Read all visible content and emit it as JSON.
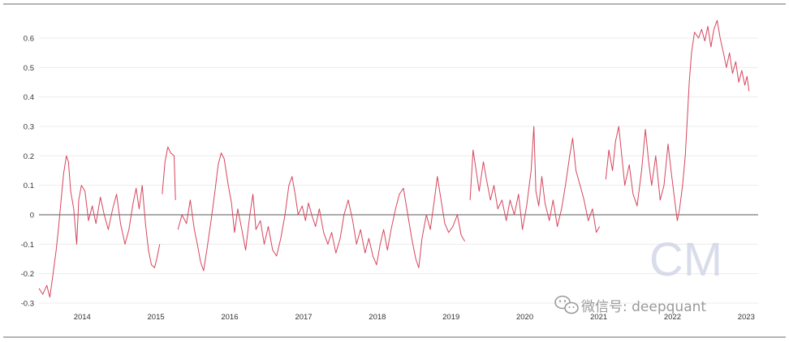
{
  "chart_data": {
    "type": "line",
    "title": "",
    "xlabel": "",
    "ylabel": "",
    "x_range": [
      "2013-06-01",
      "2023-03-01"
    ],
    "ylim": [
      -0.3,
      0.65
    ],
    "y_ticks": [
      -0.3,
      -0.2,
      -0.1,
      0,
      0.1,
      0.2,
      0.3,
      0.4,
      0.5,
      0.6
    ],
    "y_tick_labels": [
      "-0.3",
      "-0.2",
      "-0.1",
      "0",
      "0.1",
      "0.2",
      "0.3",
      "0.4",
      "0.5",
      "0.6"
    ],
    "x_ticks": [
      "2014-01-01",
      "2015-01-01",
      "2016-01-01",
      "2017-01-01",
      "2018-01-01",
      "2019-01-01",
      "2020-01-01",
      "2021-01-01",
      "2022-01-01",
      "2023-01-01"
    ],
    "x_tick_labels": [
      "2014",
      "2015",
      "2016",
      "2017",
      "2018",
      "2019",
      "2020",
      "2021",
      "2022",
      "2023"
    ],
    "grid": "horizontal",
    "zero_line": true,
    "series": [
      {
        "color": "#d6455e",
        "points": [
          [
            "2013-06-01",
            -0.25
          ],
          [
            "2013-06-20",
            -0.27
          ],
          [
            "2013-07-10",
            -0.24
          ],
          [
            "2013-07-25",
            -0.28
          ],
          [
            "2013-08-10",
            -0.2
          ],
          [
            "2013-08-25",
            -0.12
          ],
          [
            "2013-09-05",
            -0.05
          ],
          [
            "2013-09-20",
            0.06
          ],
          [
            "2013-10-01",
            0.14
          ],
          [
            "2013-10-15",
            0.2
          ],
          [
            "2013-10-25",
            0.18
          ],
          [
            "2013-11-05",
            0.08
          ],
          [
            "2013-11-20",
            0.02
          ],
          [
            "2013-12-05",
            -0.1
          ],
          [
            "2013-12-15",
            0.05
          ],
          [
            "2013-12-28",
            0.1
          ],
          [
            "2014-01-15",
            0.08
          ],
          [
            "2014-02-01",
            -0.02
          ],
          [
            "2014-02-20",
            0.03
          ],
          [
            "2014-03-10",
            -0.03
          ],
          [
            "2014-04-01",
            0.06
          ],
          [
            "2014-04-20",
            0.0
          ],
          [
            "2014-05-10",
            -0.05
          ],
          [
            "2014-06-01",
            0.02
          ],
          [
            "2014-06-20",
            0.07
          ],
          [
            "2014-07-10",
            -0.03
          ],
          [
            "2014-08-01",
            -0.1
          ],
          [
            "2014-08-20",
            -0.05
          ],
          [
            "2014-09-10",
            0.04
          ],
          [
            "2014-09-25",
            0.09
          ],
          [
            "2014-10-10",
            0.02
          ],
          [
            "2014-10-25",
            0.1
          ],
          [
            "2014-11-10",
            -0.03
          ],
          [
            "2014-11-25",
            -0.12
          ],
          [
            "2014-12-10",
            -0.17
          ],
          [
            "2014-12-25",
            -0.18
          ],
          [
            "2015-01-05",
            -0.15
          ],
          [
            "2015-01-20",
            -0.1
          ],
          [
            "2015-01-22",
            null
          ],
          [
            "2015-02-01",
            0.07
          ],
          [
            "2015-02-15",
            0.18
          ],
          [
            "2015-03-01",
            0.23
          ],
          [
            "2015-03-15",
            0.21
          ],
          [
            "2015-04-01",
            0.2
          ],
          [
            "2015-04-08",
            0.05
          ],
          [
            "2015-04-10",
            null
          ],
          [
            "2015-04-20",
            -0.05
          ],
          [
            "2015-05-10",
            0.0
          ],
          [
            "2015-06-01",
            -0.03
          ],
          [
            "2015-06-20",
            0.05
          ],
          [
            "2015-07-10",
            -0.05
          ],
          [
            "2015-07-25",
            -0.1
          ],
          [
            "2015-08-10",
            -0.16
          ],
          [
            "2015-08-25",
            -0.19
          ],
          [
            "2015-09-10",
            -0.12
          ],
          [
            "2015-10-01",
            -0.02
          ],
          [
            "2015-10-20",
            0.08
          ],
          [
            "2015-11-05",
            0.17
          ],
          [
            "2015-11-20",
            0.21
          ],
          [
            "2015-12-05",
            0.19
          ],
          [
            "2015-12-25",
            0.1
          ],
          [
            "2016-01-10",
            0.04
          ],
          [
            "2016-01-25",
            -0.06
          ],
          [
            "2016-02-10",
            0.02
          ],
          [
            "2016-03-01",
            -0.05
          ],
          [
            "2016-03-20",
            -0.12
          ],
          [
            "2016-04-10",
            0.0
          ],
          [
            "2016-04-25",
            0.07
          ],
          [
            "2016-05-10",
            -0.05
          ],
          [
            "2016-06-01",
            -0.02
          ],
          [
            "2016-06-20",
            -0.1
          ],
          [
            "2016-07-10",
            -0.04
          ],
          [
            "2016-08-01",
            -0.12
          ],
          [
            "2016-08-20",
            -0.14
          ],
          [
            "2016-09-10",
            -0.08
          ],
          [
            "2016-10-01",
            0.0
          ],
          [
            "2016-10-20",
            0.1
          ],
          [
            "2016-11-05",
            0.13
          ],
          [
            "2016-11-20",
            0.07
          ],
          [
            "2016-12-05",
            0.0
          ],
          [
            "2016-12-25",
            0.03
          ],
          [
            "2017-01-10",
            -0.02
          ],
          [
            "2017-01-25",
            0.04
          ],
          [
            "2017-02-10",
            0.0
          ],
          [
            "2017-03-01",
            -0.04
          ],
          [
            "2017-03-20",
            0.02
          ],
          [
            "2017-04-10",
            -0.06
          ],
          [
            "2017-05-01",
            -0.1
          ],
          [
            "2017-05-20",
            -0.06
          ],
          [
            "2017-06-10",
            -0.13
          ],
          [
            "2017-07-01",
            -0.08
          ],
          [
            "2017-07-20",
            0.0
          ],
          [
            "2017-08-10",
            0.05
          ],
          [
            "2017-09-01",
            -0.02
          ],
          [
            "2017-09-20",
            -0.1
          ],
          [
            "2017-10-10",
            -0.05
          ],
          [
            "2017-11-01",
            -0.13
          ],
          [
            "2017-11-20",
            -0.08
          ],
          [
            "2017-12-10",
            -0.14
          ],
          [
            "2017-12-28",
            -0.17
          ],
          [
            "2018-01-15",
            -0.1
          ],
          [
            "2018-02-01",
            -0.05
          ],
          [
            "2018-02-20",
            -0.12
          ],
          [
            "2018-03-10",
            -0.05
          ],
          [
            "2018-04-01",
            0.02
          ],
          [
            "2018-04-20",
            0.07
          ],
          [
            "2018-05-10",
            0.09
          ],
          [
            "2018-06-01",
            0.0
          ],
          [
            "2018-06-20",
            -0.08
          ],
          [
            "2018-07-10",
            -0.15
          ],
          [
            "2018-07-25",
            -0.18
          ],
          [
            "2018-08-10",
            -0.08
          ],
          [
            "2018-09-01",
            0.0
          ],
          [
            "2018-09-20",
            -0.05
          ],
          [
            "2018-10-10",
            0.05
          ],
          [
            "2018-10-25",
            0.13
          ],
          [
            "2018-11-10",
            0.06
          ],
          [
            "2018-12-01",
            -0.03
          ],
          [
            "2018-12-20",
            -0.06
          ],
          [
            "2019-01-10",
            -0.04
          ],
          [
            "2019-02-01",
            0.0
          ],
          [
            "2019-02-20",
            -0.07
          ],
          [
            "2019-03-10",
            -0.09
          ],
          [
            "2019-03-15",
            null
          ],
          [
            "2019-04-05",
            0.05
          ],
          [
            "2019-04-20",
            0.22
          ],
          [
            "2019-05-05",
            0.15
          ],
          [
            "2019-05-20",
            0.08
          ],
          [
            "2019-06-10",
            0.18
          ],
          [
            "2019-06-25",
            0.12
          ],
          [
            "2019-07-15",
            0.05
          ],
          [
            "2019-08-01",
            0.1
          ],
          [
            "2019-08-20",
            0.02
          ],
          [
            "2019-09-10",
            0.05
          ],
          [
            "2019-10-01",
            -0.02
          ],
          [
            "2019-10-20",
            0.05
          ],
          [
            "2019-11-10",
            0.0
          ],
          [
            "2019-12-01",
            0.07
          ],
          [
            "2019-12-20",
            -0.05
          ],
          [
            "2020-01-10",
            0.03
          ],
          [
            "2020-02-01",
            0.15
          ],
          [
            "2020-02-15",
            0.3
          ],
          [
            "2020-02-25",
            0.08
          ],
          [
            "2020-03-10",
            0.03
          ],
          [
            "2020-03-25",
            0.13
          ],
          [
            "2020-04-10",
            0.04
          ],
          [
            "2020-05-01",
            -0.02
          ],
          [
            "2020-05-20",
            0.05
          ],
          [
            "2020-06-10",
            -0.04
          ],
          [
            "2020-07-01",
            0.02
          ],
          [
            "2020-07-20",
            0.1
          ],
          [
            "2020-08-10",
            0.2
          ],
          [
            "2020-08-25",
            0.26
          ],
          [
            "2020-09-10",
            0.15
          ],
          [
            "2020-10-01",
            0.1
          ],
          [
            "2020-10-20",
            0.05
          ],
          [
            "2020-11-10",
            -0.02
          ],
          [
            "2020-12-01",
            0.02
          ],
          [
            "2020-12-20",
            -0.06
          ],
          [
            "2021-01-05",
            -0.04
          ],
          [
            "2021-01-10",
            null
          ],
          [
            "2021-02-05",
            0.12
          ],
          [
            "2021-02-20",
            0.22
          ],
          [
            "2021-03-10",
            0.15
          ],
          [
            "2021-03-25",
            0.25
          ],
          [
            "2021-04-10",
            0.3
          ],
          [
            "2021-04-25",
            0.2
          ],
          [
            "2021-05-10",
            0.1
          ],
          [
            "2021-06-01",
            0.17
          ],
          [
            "2021-06-20",
            0.07
          ],
          [
            "2021-07-10",
            0.03
          ],
          [
            "2021-08-01",
            0.15
          ],
          [
            "2021-08-20",
            0.29
          ],
          [
            "2021-09-05",
            0.18
          ],
          [
            "2021-09-20",
            0.1
          ],
          [
            "2021-10-10",
            0.2
          ],
          [
            "2021-11-01",
            0.05
          ],
          [
            "2021-11-20",
            0.1
          ],
          [
            "2021-12-10",
            0.24
          ],
          [
            "2021-12-25",
            0.15
          ],
          [
            "2022-01-10",
            0.06
          ],
          [
            "2022-01-25",
            -0.02
          ],
          [
            "2022-02-05",
            0.02
          ],
          [
            "2022-02-20",
            0.1
          ],
          [
            "2022-03-05",
            0.2
          ],
          [
            "2022-03-15",
            0.32
          ],
          [
            "2022-03-25",
            0.45
          ],
          [
            "2022-04-05",
            0.55
          ],
          [
            "2022-04-20",
            0.62
          ],
          [
            "2022-05-10",
            0.6
          ],
          [
            "2022-05-25",
            0.63
          ],
          [
            "2022-06-10",
            0.59
          ],
          [
            "2022-06-25",
            0.64
          ],
          [
            "2022-07-10",
            0.57
          ],
          [
            "2022-07-25",
            0.63
          ],
          [
            "2022-08-10",
            0.66
          ],
          [
            "2022-08-25",
            0.6
          ],
          [
            "2022-09-10",
            0.55
          ],
          [
            "2022-09-25",
            0.5
          ],
          [
            "2022-10-10",
            0.55
          ],
          [
            "2022-10-25",
            0.48
          ],
          [
            "2022-11-10",
            0.52
          ],
          [
            "2022-11-25",
            0.45
          ],
          [
            "2022-12-10",
            0.49
          ],
          [
            "2022-12-25",
            0.44
          ],
          [
            "2023-01-05",
            0.47
          ],
          [
            "2023-01-15",
            0.42
          ]
        ]
      }
    ]
  },
  "watermark": {
    "logo_text": "CM",
    "caption": "微信号: deepquant"
  },
  "colors": {
    "series": "#d6455e",
    "grid": "#ececec",
    "zero_line": "#7a7a7a",
    "frame": "#9b9b9b",
    "watermark": "#c9cfe3"
  }
}
